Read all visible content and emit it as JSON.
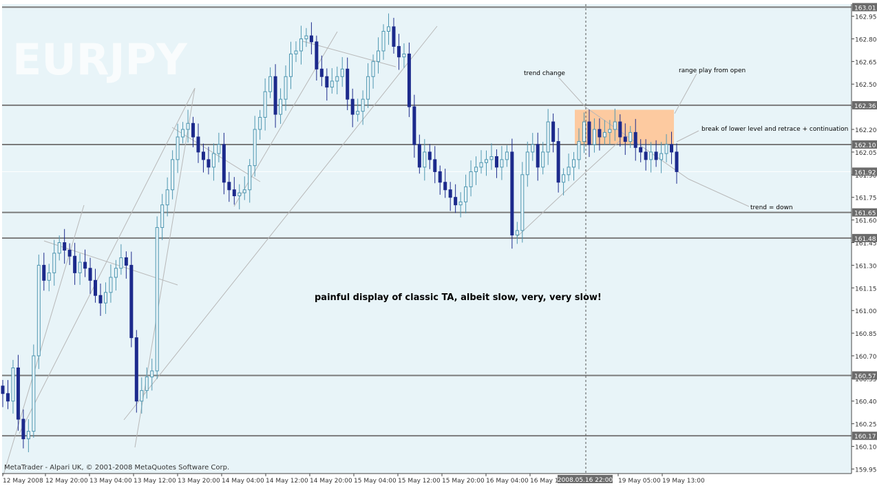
{
  "symbol": "EURJPY",
  "copyright": "MetaTrader - Alpari UK, © 2001-2008 MetaQuotes Software Corp.",
  "headline": "painful display of classic TA, albeit slow, very, very slow!",
  "colors": {
    "background": "#e8f4f8",
    "candle_up": "#4f97b1",
    "candle_down": "#1c2a8c",
    "level_line": "#7a7a7a",
    "label_bg": "#6b6b6b",
    "range_box": "#fdcaa0",
    "trend_line": "#b8b8b8"
  },
  "chart_data": {
    "type": "candlestick",
    "y_ticks": [
      "162.95",
      "162.80",
      "162.65",
      "162.50",
      "162.35",
      "162.20",
      "162.05",
      "161.90",
      "161.75",
      "161.60",
      "161.45",
      "161.30",
      "161.15",
      "161.00",
      "160.85",
      "160.70",
      "160.55",
      "160.40",
      "160.25",
      "160.10",
      "159.95"
    ],
    "ylim": [
      159.92,
      163.03
    ],
    "x_ticks": [
      "12 May 2008",
      "12 May 20:00",
      "13 May 04:00",
      "13 May 12:00",
      "13 May 20:00",
      "14 May 04:00",
      "14 May 12:00",
      "14 May 20:00",
      "15 May 04:00",
      "15 May 12:00",
      "15 May 20:00",
      "16 May 04:00",
      "16 May 1",
      "19 May 05:00",
      "19 May 13:00"
    ],
    "crosshair_time": "2008.05.16 22:00",
    "levels": [
      {
        "value": 163.01,
        "label": "163.01"
      },
      {
        "value": 162.36,
        "label": "162.36"
      },
      {
        "value": 162.1,
        "label": "162.10"
      },
      {
        "value": 161.92,
        "label": "161.92",
        "current": true
      },
      {
        "value": 161.65,
        "label": "161.65"
      },
      {
        "value": 161.48,
        "label": "161.48"
      },
      {
        "value": 160.57,
        "label": "160.57"
      },
      {
        "value": 160.17,
        "label": "160.17"
      }
    ],
    "annotations": [
      {
        "text": "trend change"
      },
      {
        "text": "range play from open"
      },
      {
        "text": "break of lower level and retrace + continuation"
      },
      {
        "text": "trend = down"
      }
    ],
    "range_box": {
      "price_top": 162.33,
      "price_bottom": 162.1
    },
    "closes": [
      160.45,
      160.4,
      160.62,
      160.28,
      160.15,
      160.2,
      160.7,
      161.3,
      161.2,
      161.25,
      161.38,
      161.45,
      161.4,
      161.36,
      161.25,
      161.32,
      161.28,
      161.2,
      161.1,
      161.05,
      161.12,
      161.22,
      161.28,
      161.35,
      161.3,
      160.82,
      160.4,
      160.47,
      160.56,
      160.6,
      161.55,
      161.7,
      161.8,
      162.0,
      162.15,
      162.2,
      162.24,
      162.15,
      162.05,
      162.0,
      161.95,
      162.04,
      162.1,
      161.85,
      161.8,
      161.76,
      161.78,
      161.8,
      161.96,
      162.2,
      162.28,
      162.45,
      162.55,
      162.3,
      162.4,
      162.55,
      162.7,
      162.72,
      162.8,
      162.82,
      162.78,
      162.6,
      162.55,
      162.48,
      162.52,
      162.55,
      162.6,
      162.4,
      162.3,
      162.32,
      162.4,
      162.55,
      162.65,
      162.72,
      162.85,
      162.88,
      162.75,
      162.68,
      162.7,
      162.35,
      162.1,
      161.95,
      162.05,
      162.0,
      161.92,
      161.85,
      161.8,
      161.75,
      161.7,
      161.72,
      161.82,
      161.92,
      161.95,
      161.98,
      162.0,
      162.02,
      161.95,
      162.0,
      162.05,
      161.5,
      161.53,
      161.9,
      162.05,
      162.1,
      161.95,
      162.05,
      162.25,
      162.12,
      161.85,
      161.9,
      161.95,
      162.0,
      162.12,
      162.25,
      162.1,
      162.2,
      162.15,
      162.18,
      162.2,
      162.25,
      162.15,
      162.12,
      162.18,
      162.08,
      162.05,
      162.0,
      162.05,
      162.0,
      162.04,
      162.1,
      162.05,
      161.92
    ]
  }
}
